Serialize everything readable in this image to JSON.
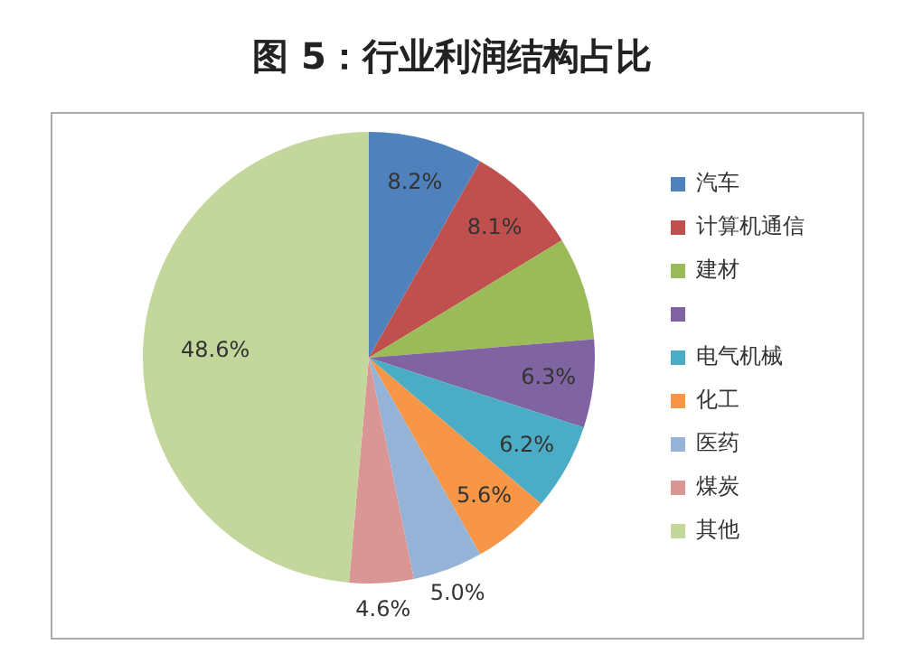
{
  "chart_data": {
    "type": "pie",
    "title": "图 5：行业利润结构占比",
    "categories": [
      "汽车",
      "计算机通信",
      "建材",
      null,
      "电气机械",
      "化工",
      "医药",
      "煤炭",
      "其他"
    ],
    "values": [
      8.2,
      8.1,
      7.4,
      6.3,
      6.2,
      5.6,
      5.0,
      4.6,
      48.6
    ],
    "colors": [
      "#4f81bd",
      "#c0504d",
      "#9bbb59",
      "#8064a2",
      "#4bacc6",
      "#f79646",
      "#95b3d7",
      "#d99694",
      "#c3d69b"
    ],
    "value_labels": [
      "8.2%",
      "8.1%",
      null,
      "6.3%",
      "6.2%",
      "5.6%",
      "5.0%",
      "4.6%",
      "48.6%"
    ],
    "legend": "right"
  }
}
